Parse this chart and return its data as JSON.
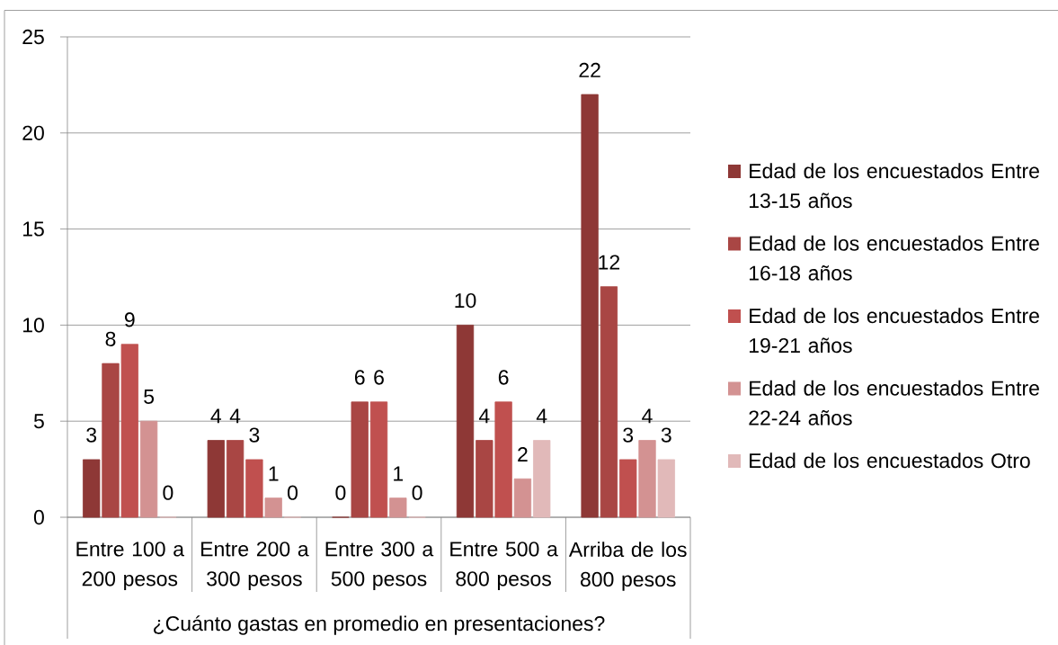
{
  "chart_data": {
    "type": "bar",
    "xlabel": "¿Cuánto gastas en promedio en presentaciones?",
    "categories": [
      "Entre 100 a 200 pesos",
      "Entre 200 a 300 pesos",
      "Entre 300 a 500 pesos",
      "Entre 500 a 800 pesos",
      "Arriba de los 800 pesos"
    ],
    "series": [
      {
        "name": "Edad de los encuestados Entre 13-15 años",
        "color": "#8e3836",
        "values": [
          3,
          4,
          0,
          10,
          22
        ]
      },
      {
        "name": "Edad de los encuestados Entre 16-18 años",
        "color": "#a94644",
        "values": [
          8,
          4,
          6,
          4,
          12
        ]
      },
      {
        "name": "Edad de los encuestados Entre 19-21 años",
        "color": "#c0504f",
        "values": [
          9,
          3,
          6,
          6,
          3
        ]
      },
      {
        "name": "Edad de los encuestados Entre 22-24 años",
        "color": "#d39292",
        "values": [
          5,
          1,
          1,
          2,
          4
        ]
      },
      {
        "name": "Edad de los encuestados Otro",
        "color": "#e1b9b9",
        "values": [
          0,
          0,
          0,
          4,
          3
        ]
      }
    ],
    "ylim": [
      0,
      25
    ],
    "yticks": [
      0,
      5,
      10,
      15,
      20,
      25
    ],
    "grid": "y",
    "legend": "right",
    "data_labels": true
  }
}
